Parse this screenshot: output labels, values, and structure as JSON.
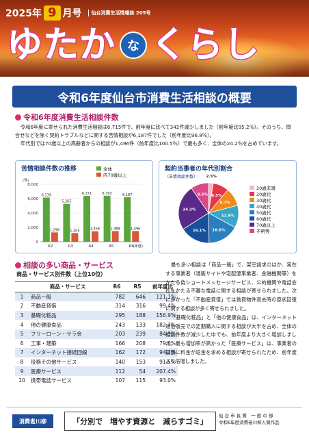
{
  "header": {
    "year": "2025年",
    "month": "9",
    "month_suffix": "月号",
    "issue": "仙台消費生活情報誌 205号",
    "title_part1": "ゆたか",
    "title_na": "な",
    "title_part2": "くらし"
  },
  "main_title": "令和6年度仙台市消費生活相談の概要",
  "section1": {
    "heading": "令和6年度消費生活相談件数",
    "paragraphs": [
      "令和6年度に寄せられた消費生活相談は6,715件で、前年度に比べて342件減少しました（前年度比95.2％）。そのうち、問合せなどを除く契約トラブルなどに関する苦情相談が6,187件でした（前年度比96.8％）。",
      "年代別では70歳以上の高齢者からの相談が1,496件（前年度比100.5％）で最も多く、全体の24.2％を占めています。"
    ]
  },
  "colors": {
    "bar_total": "#5aa63a",
    "bar_elderly": "#d9573a",
    "title_bar": "#1f4e9a",
    "section_accent": "#b0206a"
  },
  "chart_data": [
    {
      "type": "bar",
      "title": "苦情相談件数の推移",
      "ylabel": "(件)",
      "xlabel": "(年度)",
      "categories": [
        "R2",
        "R3",
        "R4",
        "R5",
        "R6"
      ],
      "ylim": [
        0,
        8000
      ],
      "yticks": [
        0,
        2000,
        4000,
        6000,
        8000
      ],
      "ytick_labels": [
        "0",
        "2,000",
        "4,000",
        "6,000",
        "8,000"
      ],
      "series": [
        {
          "name": "全体",
          "values": [
            6139,
            5265,
            6371,
            6393,
            6187
          ],
          "labels": [
            "6,139",
            "5,265",
            "6,371",
            "6,393",
            "6,187"
          ],
          "color": "#5aa63a"
        },
        {
          "name": "内70歳以上",
          "values": [
            1298,
            1205,
            1456,
            1489,
            1496
          ],
          "labels": [
            "1,298",
            "1,205",
            "1,456",
            "1,489",
            "1,496"
          ],
          "color": "#d9573a"
        }
      ],
      "legend": "top-right"
    },
    {
      "type": "pie",
      "title": "契約当事者の年代別割合",
      "subtitle": "（苦情相談件数）",
      "labels": [
        "20歳未満",
        "20歳代",
        "30歳代",
        "40歳代",
        "50歳代",
        "60歳代",
        "70歳以上",
        "不明等"
      ],
      "values": [
        2.5,
        8.5,
        9.7,
        11.9,
        16.6,
        16.1,
        24.2,
        9.5
      ],
      "value_labels": [
        "2.5%",
        "8.5%",
        "9.7%",
        "11.9%",
        "16.6%",
        "16.1%",
        "24.2%",
        "9.5%"
      ],
      "colors": [
        "#f7b6c8",
        "#e8344a",
        "#f08a1e",
        "#3aa6c8",
        "#2a7fc0",
        "#1a4f9a",
        "#5a2a8a",
        "#d84a8a"
      ],
      "legend": "right"
    }
  ],
  "section2": {
    "heading": "相談の多い商品・サービス",
    "table_title": "商品・サービス別件数（上位10位）",
    "columns": [
      "",
      "商品・サービス",
      "R6",
      "R5",
      "前年度比"
    ],
    "rows": [
      [
        "1",
        "商品一般",
        "782",
        "646",
        "121.1%"
      ],
      [
        "2",
        "不動産貸借",
        "314",
        "316",
        "99.4%"
      ],
      [
        "3",
        "基礎化粧品",
        "295",
        "188",
        "156.9%"
      ],
      [
        "4",
        "他の健康食品",
        "243",
        "133",
        "182.7%"
      ],
      [
        "5",
        "フリーローン・サラ金",
        "203",
        "239",
        "84.9%"
      ],
      [
        "6",
        "工事・建築",
        "166",
        "208",
        "79.8%"
      ],
      [
        "7",
        "インターネット接続回線",
        "162",
        "172",
        "94.2%"
      ],
      [
        "8",
        "役務その他サービス",
        "140",
        "153",
        "91.5%"
      ],
      [
        "9",
        "医療サービス",
        "112",
        "54",
        "207.4%"
      ],
      [
        "10",
        "携帯電話サービス",
        "107",
        "115",
        "93.0%"
      ]
    ],
    "body_text": [
      "最も多い相談は「商品一般」で、架空請求のはか、実在する事業者（通販サイトや宅配便事業者、金融機関等）をかたる偽ショートメッセージサービス、公的機関や電話会社をかたる不審な電話に関する相談が寄せられました。次に多かった「不動産貸借」では賃貸物件退去時の原状回復に関する相談が多く寄せられました。",
      "「基礎化粧品」と「他の健康食品」は、インターネット通信販売での定期購入に関する相談が大半を占め、全体の相談件数が減少した中でも、前年度より大きく増加しました。最も増加率が高かった「医療サービス」は、事業者の勧誘に料金が返金を求める相談が寄せられたため、前年度より倍増しました。"
    ]
  },
  "footer": {
    "tag": "消費者川柳",
    "quote": "「分別で　増やす資源と　減らすゴミ」",
    "credit_line1": "仙 台 市 長 賞　一 般 の 部",
    "credit_line2": "令和6年度消費者川柳入賞作品"
  }
}
